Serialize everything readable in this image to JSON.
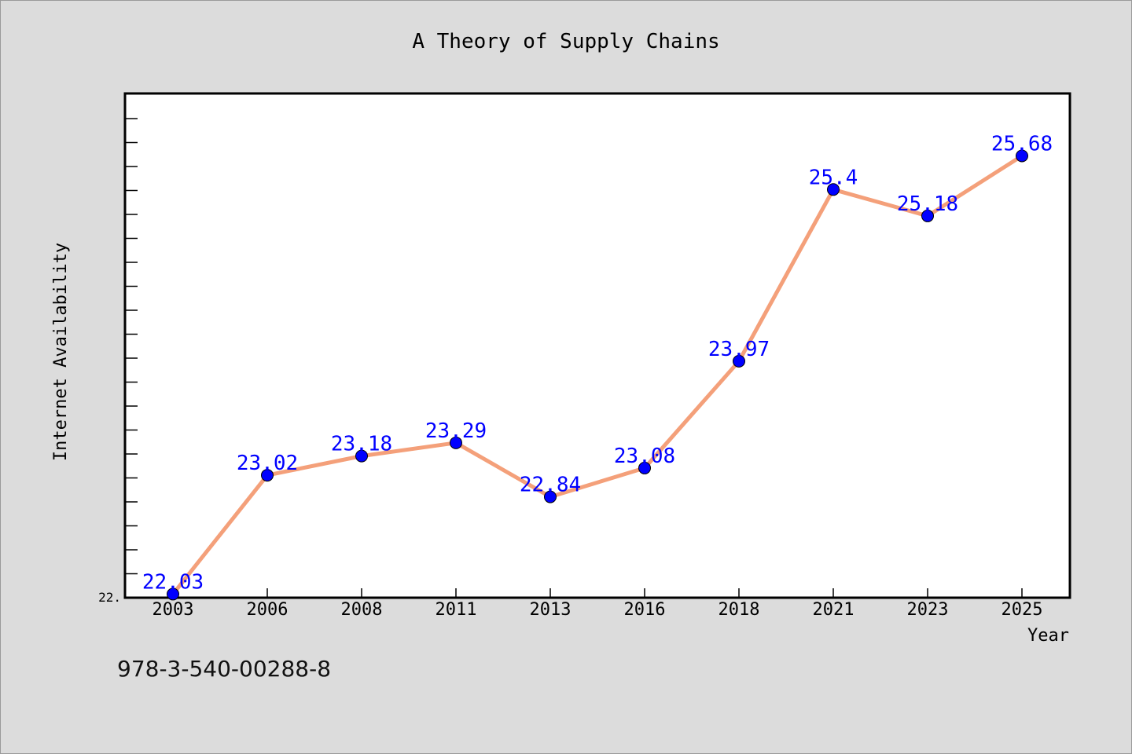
{
  "chart_data": {
    "type": "line",
    "title": "A Theory of Supply Chains",
    "xlabel": "Year",
    "ylabel": "Internet Availability",
    "categories": [
      "2003",
      "2006",
      "2008",
      "2011",
      "2013",
      "2016",
      "2018",
      "2021",
      "2023",
      "2025"
    ],
    "series": [
      {
        "values": [
          22.03,
          23.02,
          23.18,
          23.29,
          22.84,
          23.08,
          23.97,
          25.4,
          25.18,
          25.68
        ],
        "labels": [
          "22.03",
          "23.02",
          "23.18",
          "23.29",
          "22.84",
          "23.08",
          "23.97",
          "25.4",
          "25.18",
          "25.68"
        ]
      }
    ],
    "y_tick_label": "22.",
    "ylim": [
      22.0,
      26.2
    ],
    "grid": false,
    "legend": "none",
    "line_color": "#f4a07a",
    "marker_color": "#0000ff",
    "label_color": "#0000ff",
    "background_color": "#dcdcdc",
    "plot_background": "#ffffff"
  },
  "footer": {
    "isbn": "978-3-540-00288-8"
  }
}
